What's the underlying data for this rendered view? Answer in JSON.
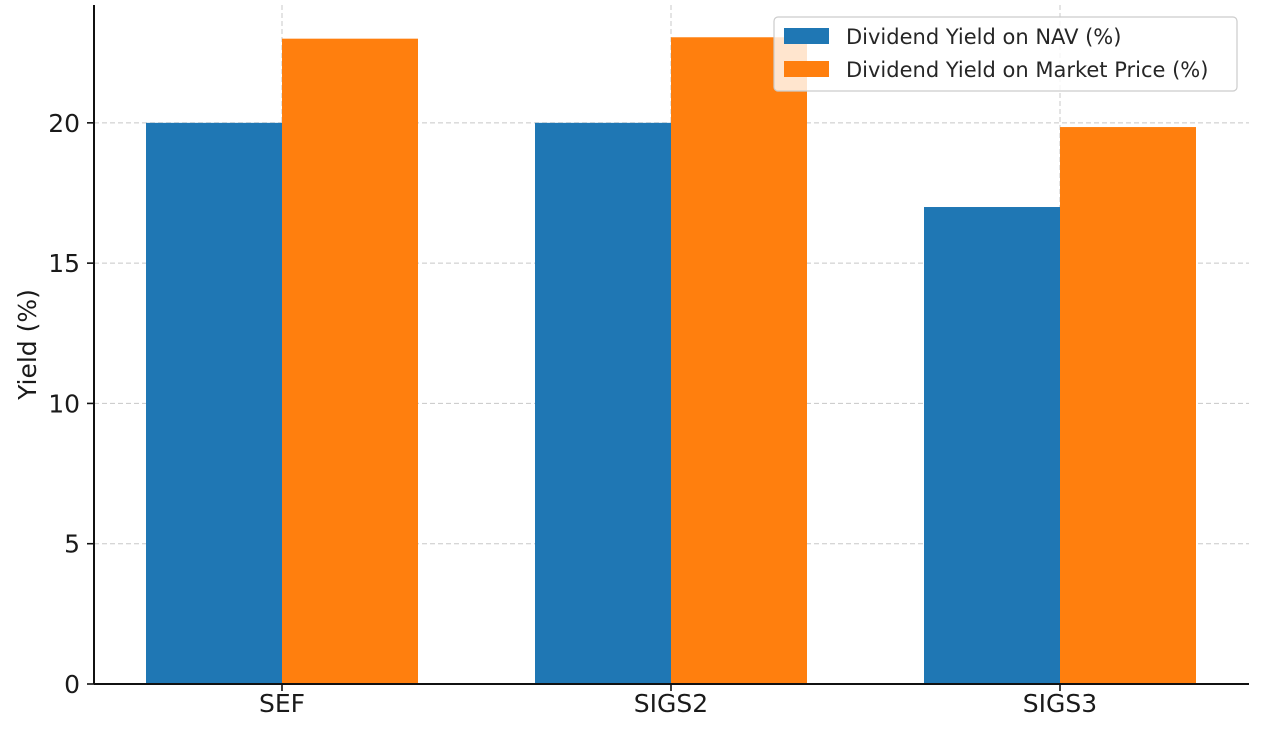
{
  "chart_data": {
    "type": "bar",
    "categories": [
      "SEF",
      "SIGS2",
      "SIGS3"
    ],
    "series": [
      {
        "name": "Dividend Yield on NAV (%)",
        "values": [
          20.0,
          20.0,
          17.0
        ],
        "color": "#1f77b4"
      },
      {
        "name": "Dividend Yield on Market Price (%)",
        "values": [
          23.0,
          23.05,
          19.85
        ],
        "color": "#ff7f0e"
      }
    ],
    "title": "",
    "xlabel": "",
    "ylabel": "Yield (%)",
    "ylim": [
      0,
      24.2
    ],
    "yticks": [
      0,
      5,
      10,
      15,
      20
    ],
    "grid": true,
    "legend_position": "upper-right"
  }
}
